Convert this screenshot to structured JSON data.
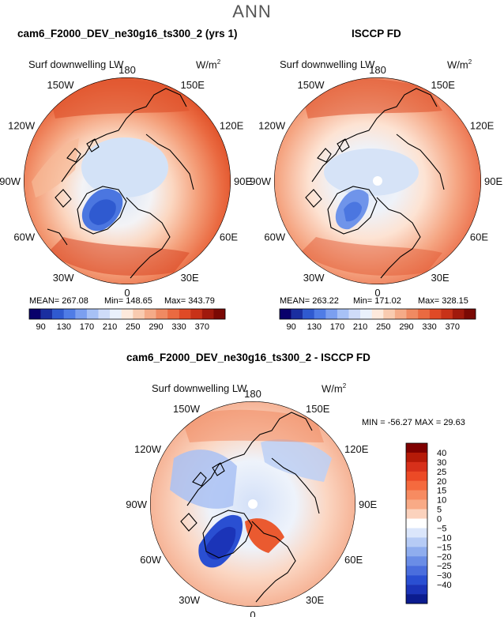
{
  "header": {
    "season": "ANN"
  },
  "panels": {
    "left": {
      "title": "cam6_F2000_DEV_ne30g16_ts300_2 (yrs 1)",
      "variable": "Surf downwelling LW",
      "units_base": "W/m",
      "units_exp": "2",
      "stats": {
        "mean": "MEAN= 267.08",
        "min": "Min= 148.65",
        "max": "Max= 343.79"
      }
    },
    "right": {
      "title": "ISCCP FD",
      "variable": "Surf downwelling LW",
      "units_base": "W/m",
      "units_exp": "2",
      "stats": {
        "mean": "MEAN= 263.22",
        "min": "Min= 171.02",
        "max": "Max= 328.15"
      }
    },
    "diff": {
      "title": "cam6_F2000_DEV_ne30g16_ts300_2 - ISCCP FD",
      "variable": "Surf downwelling LW",
      "units_base": "W/m",
      "units_exp": "2",
      "minmax": "MIN = -56.27  MAX =  29.63"
    }
  },
  "longitude_labels": [
    "180",
    "150E",
    "120E",
    "90E",
    "60E",
    "30E",
    "0",
    "30W",
    "60W",
    "90W",
    "120W",
    "150W"
  ],
  "colorbars": {
    "abs_ticks": [
      "90",
      "130",
      "170",
      "210",
      "250",
      "290",
      "330",
      "370"
    ],
    "abs_colors": [
      "#08006b",
      "#1a2ea0",
      "#2f5ad0",
      "#4f7ce6",
      "#7b9ff0",
      "#a7c1f6",
      "#cfdcf9",
      "#eaf1fb",
      "#fde9dc",
      "#f9cbb0",
      "#f5ab88",
      "#f08a62",
      "#ea6a41",
      "#df4a26",
      "#c83218",
      "#a0190c",
      "#7a0904"
    ],
    "diff_ticks": [
      "40",
      "30",
      "25",
      "20",
      "15",
      "10",
      "5",
      "0",
      "−5",
      "−10",
      "−15",
      "−20",
      "−25",
      "−30",
      "−40"
    ],
    "diff_colors": [
      "#7f0000",
      "#b51a08",
      "#d7301a",
      "#ec4a26",
      "#f56a3e",
      "#f78b61",
      "#f8aa86",
      "#fbd2bd",
      "#ffffff",
      "#dbe6fb",
      "#b6cbf5",
      "#8fadee",
      "#6a8de6",
      "#4a6edd",
      "#2a4fd2",
      "#1b34b8",
      "#0b1c8f"
    ]
  }
}
